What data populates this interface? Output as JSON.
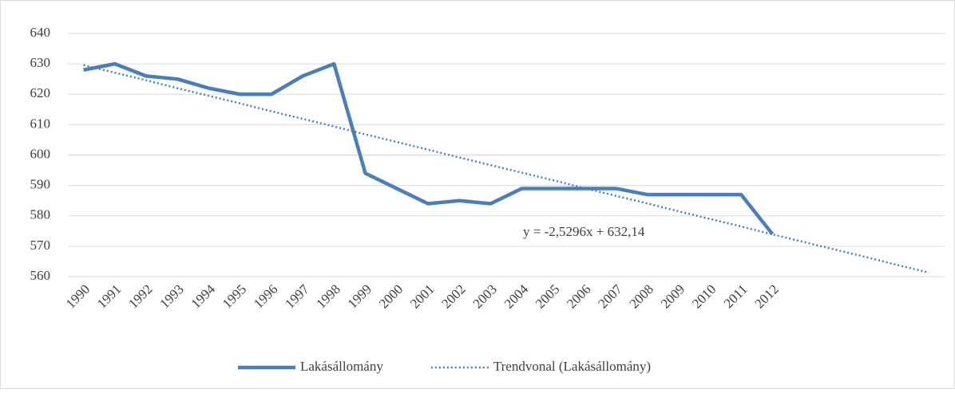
{
  "chart_data": {
    "type": "line",
    "categories": [
      "1990",
      "1991",
      "1992",
      "1993",
      "1994",
      "1995",
      "1996",
      "1997",
      "1998",
      "1999",
      "2000",
      "2001",
      "2002",
      "2003",
      "2004",
      "2005",
      "2006",
      "2007",
      "2008",
      "2009",
      "2010",
      "2011",
      "2012",
      null,
      null,
      null,
      null,
      null
    ],
    "series": [
      {
        "name": "Lakásállomány",
        "color": "#4a7ebb",
        "style": "solid",
        "values": [
          628,
          630,
          626,
          625,
          622,
          620,
          620,
          626,
          630,
          594,
          589,
          584,
          585,
          584,
          589,
          589,
          589,
          589,
          587,
          587,
          587,
          587,
          574,
          null,
          null,
          null,
          null,
          null
        ]
      },
      {
        "name": "Trendvonal (Lakásállomány)",
        "color": "#4a7ebb",
        "style": "dotted",
        "values": [
          629.6,
          627.1,
          624.6,
          622.0,
          619.5,
          617.0,
          614.4,
          611.9,
          609.4,
          606.8,
          604.3,
          601.8,
          599.2,
          596.7,
          594.2,
          591.7,
          589.1,
          586.6,
          584.1,
          581.5,
          579.0,
          576.5,
          573.9,
          571.4,
          568.9,
          566.4,
          563.8,
          561.3
        ]
      }
    ],
    "annotation": "y = -2,5296x + 632,14",
    "ylim": [
      560,
      640
    ],
    "yticks": [
      560,
      570,
      580,
      590,
      600,
      610,
      620,
      630,
      640
    ],
    "grid": true,
    "legend": "bottom"
  }
}
